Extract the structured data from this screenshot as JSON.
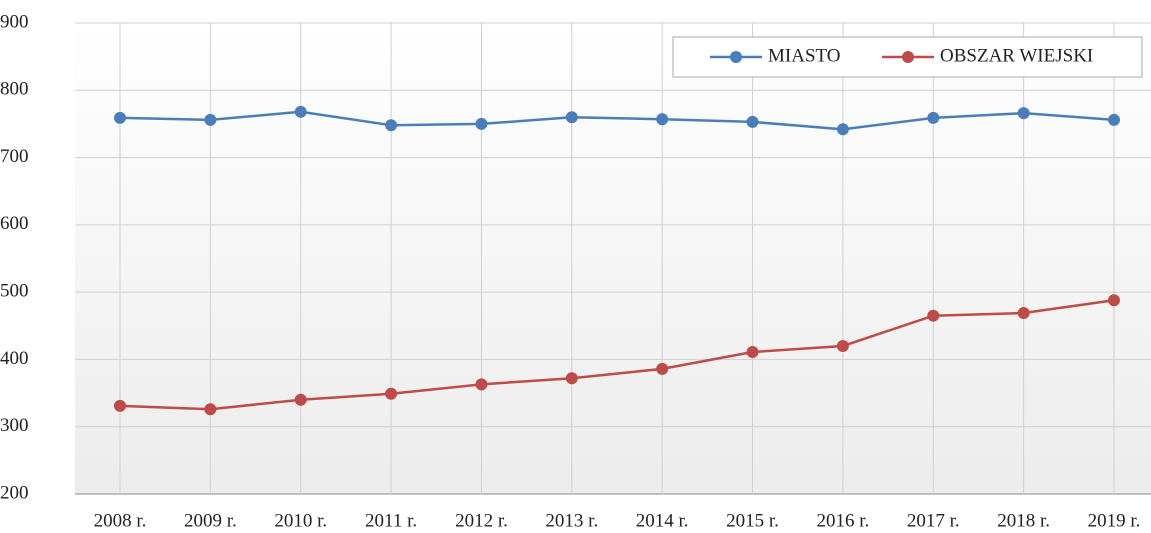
{
  "chart_data": {
    "type": "line",
    "categories": [
      "2008 r.",
      "2009 r.",
      "2010 r.",
      "2011 r.",
      "2012 r.",
      "2013 r.",
      "2014 r.",
      "2015 r.",
      "2016 r.",
      "2017 r.",
      "2018 r.",
      "2019 r."
    ],
    "series": [
      {
        "name": "MIASTO",
        "color": "#4a7ebb",
        "values": [
          759,
          756,
          768,
          748,
          750,
          760,
          757,
          753,
          742,
          759,
          766,
          756
        ]
      },
      {
        "name": "OBSZAR WIEJSKI",
        "color": "#be4b48",
        "values": [
          331,
          326,
          340,
          349,
          363,
          372,
          386,
          411,
          420,
          465,
          469,
          488
        ]
      }
    ],
    "ylim": [
      200,
      900
    ],
    "yticks": [
      200,
      300,
      400,
      500,
      600,
      700,
      800,
      900
    ],
    "grid": true,
    "legend": "top-right"
  }
}
